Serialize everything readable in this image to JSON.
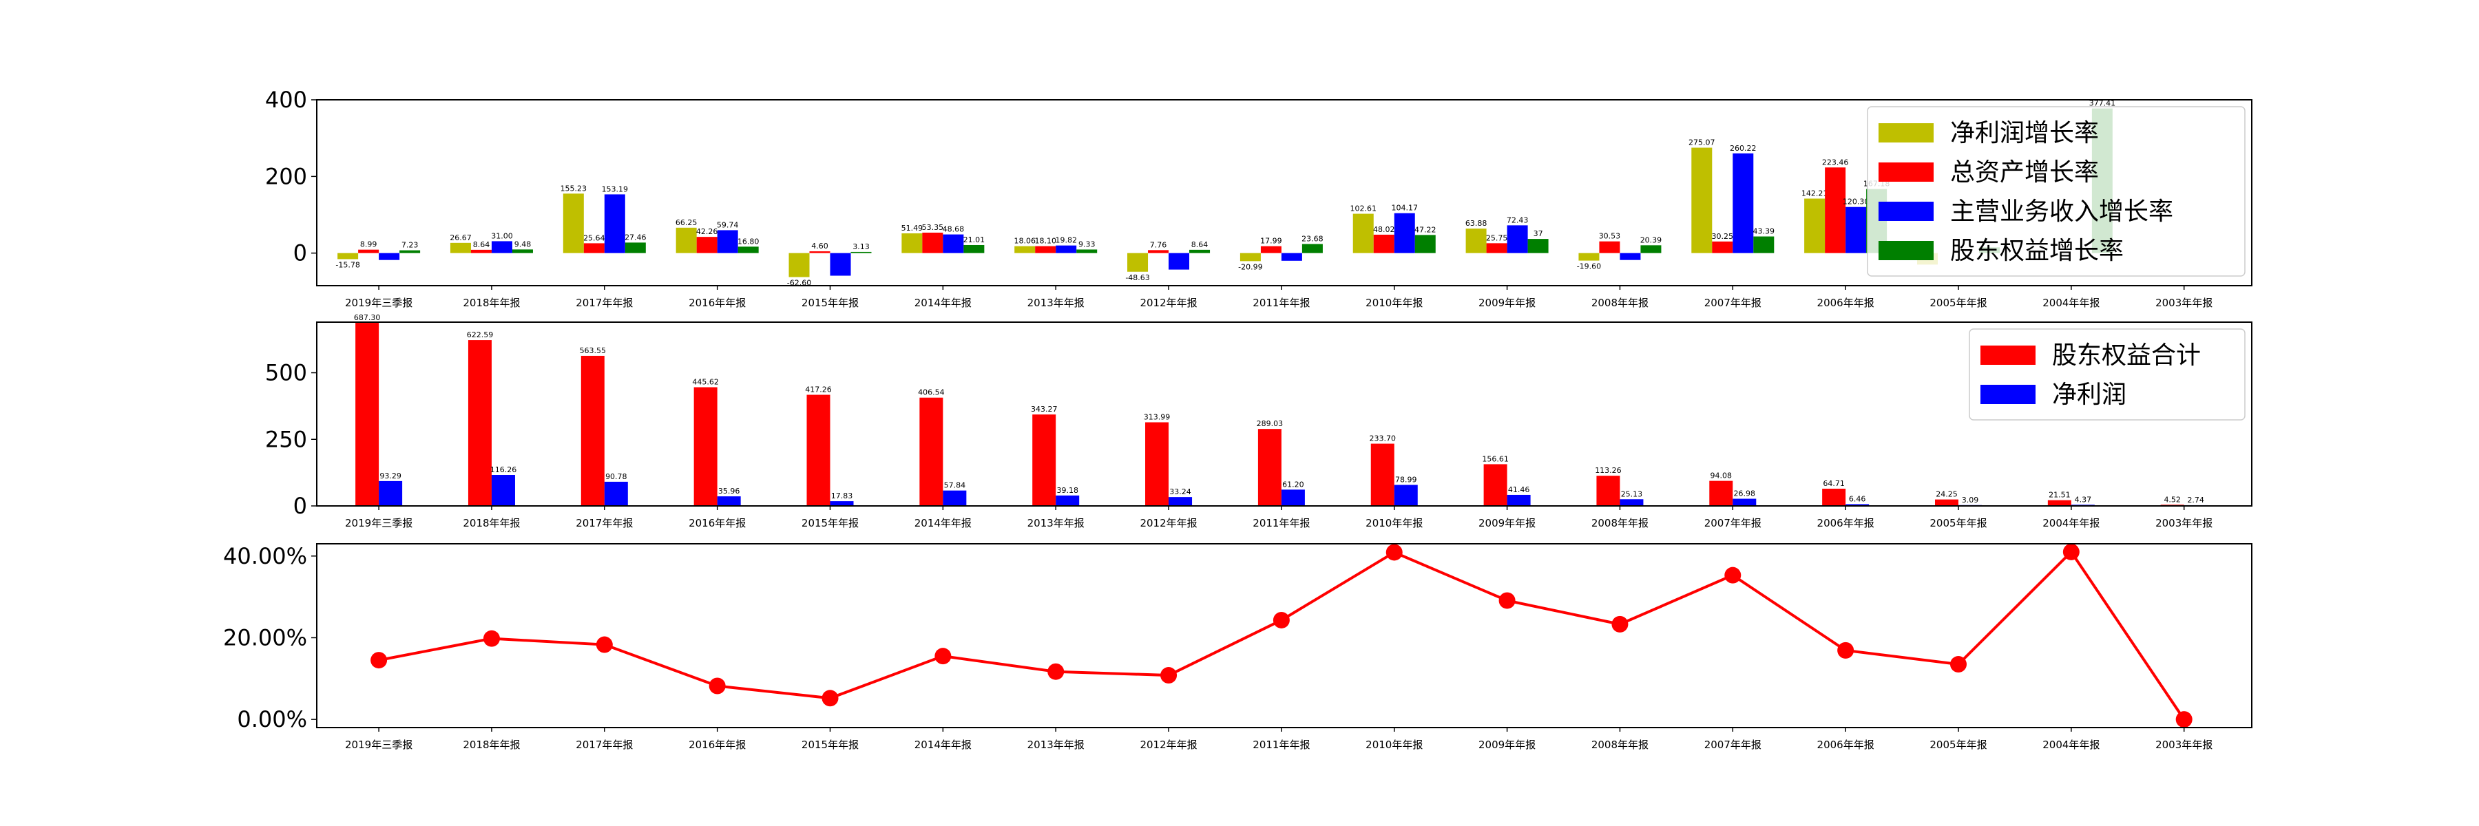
{
  "chart_data": [
    {
      "type": "bar",
      "categories": [
        "2019年三季报",
        "2018年年报",
        "2017年年报",
        "2016年年报",
        "2015年年报",
        "2014年年报",
        "2013年年报",
        "2012年年报",
        "2011年年报",
        "2010年年报",
        "2009年年报",
        "2008年年报",
        "2007年年报",
        "2006年年报",
        "2005年年报",
        "2004年年报",
        "2003年年报"
      ],
      "ylim": [
        -85,
        400
      ],
      "yticks": [
        "0",
        "200",
        "400"
      ],
      "legend_position": "top-right",
      "series": [
        {
          "name": "净利润增长率",
          "color": "#bfbf00",
          "values": [
            -15.78,
            26.67,
            155.23,
            66.25,
            -62.6,
            51.49,
            18.06,
            -48.63,
            -20.99,
            102.61,
            63.88,
            -19.6,
            275.07,
            142.21,
            -30.0,
            null,
            null
          ],
          "labels": [
            "-15.78",
            "26.67",
            "155.23",
            "66.25",
            "-62.60",
            "51.49",
            "18.06",
            "-48.63",
            "-20.99",
            "102.61",
            "63.88",
            "-19.60",
            "275.07",
            "142.21",
            "",
            "",
            ""
          ]
        },
        {
          "name": "总资产增长率",
          "color": "#ff0000",
          "values": [
            8.99,
            8.64,
            25.64,
            42.26,
            4.6,
            53.35,
            18.1,
            7.76,
            17.99,
            48.02,
            25.75,
            30.53,
            30.25,
            223.46,
            null,
            null,
            null
          ],
          "labels": [
            "8.99",
            "8.64",
            "25.64",
            "42.26",
            "4.60",
            "53.35",
            "18.10",
            "7.76",
            "17.99",
            "48.02",
            "25.75",
            "30.53",
            "30.25",
            "223.46",
            "",
            "",
            ""
          ]
        },
        {
          "name": "主营业务收入增长率",
          "color": "#0000ff",
          "values": [
            -18.0,
            31.0,
            153.19,
            59.74,
            -59.0,
            48.68,
            19.82,
            -43.0,
            -20.0,
            104.17,
            72.43,
            -18.0,
            260.22,
            120.3,
            null,
            null,
            null
          ],
          "labels": [
            "",
            "31.00",
            "153.19",
            "59.74",
            "",
            "48.68",
            "19.82",
            "",
            "",
            "104.17",
            "72.43",
            "",
            "260.22",
            "120.30",
            "",
            "",
            ""
          ]
        },
        {
          "name": "股东权益增长率",
          "color": "#007f00",
          "values": [
            7.23,
            9.48,
            27.46,
            16.8,
            3.13,
            21.01,
            9.33,
            8.64,
            23.68,
            47.22,
            37.0,
            20.39,
            43.39,
            167.18,
            15.0,
            377.41,
            null
          ],
          "labels": [
            "7.23",
            "9.48",
            "27.46",
            "16.80",
            "3.13",
            "21.01",
            "9.33",
            "8.64",
            "23.68",
            "47.22",
            "37",
            "20.39",
            "43.39",
            "167.18",
            "",
            "377.41",
            ""
          ]
        }
      ]
    },
    {
      "type": "bar",
      "categories": [
        "2019年三季报",
        "2018年年报",
        "2017年年报",
        "2016年年报",
        "2015年年报",
        "2014年年报",
        "2013年年报",
        "2012年年报",
        "2011年年报",
        "2010年年报",
        "2009年年报",
        "2008年年报",
        "2007年年报",
        "2006年年报",
        "2005年年报",
        "2004年年报",
        "2003年年报"
      ],
      "ylim": [
        0,
        690
      ],
      "yticks": [
        "0",
        "250",
        "500"
      ],
      "legend_position": "top-right",
      "series": [
        {
          "name": "股东权益合计",
          "color": "#ff0000",
          "values": [
            687.3,
            622.59,
            563.55,
            445.62,
            417.26,
            406.54,
            343.27,
            313.99,
            289.03,
            233.7,
            156.61,
            113.26,
            94.08,
            64.71,
            24.25,
            21.51,
            4.52
          ],
          "labels": [
            "687.30",
            "622.59",
            "563.55",
            "445.62",
            "417.26",
            "406.54",
            "343.27",
            "313.99",
            "289.03",
            "233.70",
            "156.61",
            "113.26",
            "94.08",
            "64.71",
            "24.25",
            "21.51",
            "4.52"
          ]
        },
        {
          "name": "净利润",
          "color": "#0000ff",
          "values": [
            93.29,
            116.26,
            90.78,
            35.96,
            17.83,
            57.84,
            39.18,
            33.24,
            61.2,
            78.99,
            41.46,
            25.13,
            26.98,
            6.46,
            3.09,
            4.37,
            2.74
          ],
          "labels": [
            "93.29",
            "116.26",
            "90.78",
            "35.96",
            "17.83",
            "57.84",
            "39.18",
            "33.24",
            "61.20",
            "78.99",
            "41.46",
            "25.13",
            "26.98",
            "6.46",
            "3.09",
            "4.37",
            "2.74"
          ]
        }
      ]
    },
    {
      "type": "line",
      "x": [
        "2019年三季报",
        "2018年年报",
        "2017年年报",
        "2016年年报",
        "2015年年报",
        "2014年年报",
        "2013年年报",
        "2012年年报",
        "2011年年报",
        "2010年年报",
        "2009年年报",
        "2008年年报",
        "2007年年报",
        "2006年年报",
        "2005年年报",
        "2004年年报",
        "2003年年报"
      ],
      "ylim": [
        -2,
        43
      ],
      "yticks": [
        "0.00%",
        "20.00%",
        "40.00%"
      ],
      "series": [
        {
          "color": "#ff0000",
          "values": [
            14.5,
            19.8,
            18.3,
            8.2,
            5.2,
            15.5,
            11.7,
            10.8,
            24.3,
            40.9,
            29.1,
            23.3,
            35.3,
            16.9,
            13.5,
            41.0,
            0.0
          ]
        }
      ]
    }
  ]
}
